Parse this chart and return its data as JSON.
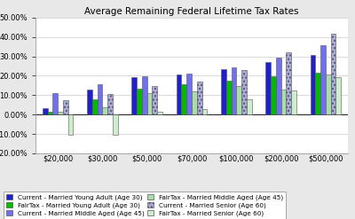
{
  "title": "Average Remaining Federal Lifetime Tax Rates",
  "categories": [
    "$20,000",
    "$30,000",
    "$50,000",
    "$70,000",
    "$100,000",
    "$200,000",
    "$500,000"
  ],
  "series": {
    "Current - Married Young Adult (Age 30)": [
      0.034,
      0.128,
      0.192,
      0.208,
      0.234,
      0.271,
      0.308
    ],
    "FairTax - Married Young Adult (Age 30)": [
      0.013,
      0.077,
      0.135,
      0.155,
      0.175,
      0.198,
      0.215
    ],
    "Current - Married Middle Aged (Age 45)": [
      0.112,
      0.155,
      0.197,
      0.212,
      0.243,
      0.294,
      0.358
    ],
    "FairTax - Married Middle Aged (Age 45)": [
      0.015,
      0.035,
      0.112,
      0.12,
      0.148,
      0.127,
      0.205
    ],
    "Current - Married Senior (Age 60)": [
      0.073,
      0.104,
      0.145,
      0.168,
      0.228,
      0.322,
      0.415
    ],
    "FairTax - Married Senior (Age 60)": [
      -0.105,
      -0.105,
      0.015,
      0.027,
      0.078,
      0.125,
      0.192
    ]
  },
  "colors": {
    "Current - Married Young Adult (Age 30)": "#1F1FCC",
    "FairTax - Married Young Adult (Age 30)": "#00BB00",
    "Current - Married Middle Aged (Age 45)": "#7070EE",
    "FairTax - Married Middle Aged (Age 45)": "#AADDAA",
    "Current - Married Senior (Age 60)": "#AAAADD",
    "FairTax - Married Senior (Age 60)": "#CCEECC"
  },
  "legend_order": [
    "Current - Married Young Adult (Age 30)",
    "FairTax - Married Young Adult (Age 30)",
    "Current - Married Middle Aged (Age 45)",
    "FairTax - Married Middle Aged (Age 45)",
    "Current - Married Senior (Age 60)",
    "FairTax - Married Senior (Age 60)"
  ],
  "ylim": [
    -0.2,
    0.5
  ],
  "yticks": [
    -0.2,
    -0.1,
    0.0,
    0.1,
    0.2,
    0.3,
    0.4,
    0.5
  ],
  "background_color": "#E8E8E8",
  "plot_bg_color": "#FFFFFF",
  "bar_width": 0.115
}
